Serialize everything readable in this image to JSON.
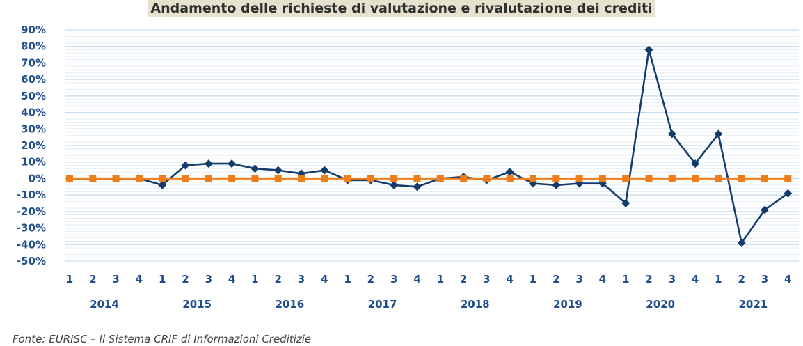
{
  "chart_data": {
    "type": "line",
    "title": "Andamento delle richieste di valutazione e rivalutazione dei crediti",
    "source": "Fonte: EURISC – Il Sistema CRIF di Informazioni Creditizie",
    "ylim": [
      -50,
      90
    ],
    "y_ticks": [
      90,
      80,
      70,
      60,
      50,
      40,
      30,
      20,
      10,
      0,
      -10,
      -20,
      -30,
      -40,
      -50
    ],
    "y_tick_suffix": "%",
    "quarters": [
      "1",
      "2",
      "3",
      "4",
      "1",
      "2",
      "3",
      "4",
      "1",
      "2",
      "3",
      "4",
      "1",
      "2",
      "3",
      "4",
      "1",
      "2",
      "3",
      "4",
      "1",
      "2",
      "3",
      "4",
      "1",
      "2",
      "3",
      "4",
      "1",
      "2",
      "3",
      "4"
    ],
    "years": [
      "2014",
      "2015",
      "2016",
      "2017",
      "2018",
      "2019",
      "2020",
      "2021"
    ],
    "grid": true,
    "series": [
      {
        "color": "#133b6b",
        "marker": "diamond",
        "values": [
          0,
          0,
          0,
          0,
          -4,
          8,
          9,
          9,
          6,
          5,
          3,
          5,
          -1,
          -1,
          -4,
          -5,
          0,
          1,
          -1,
          4,
          -3,
          -4,
          -3,
          -3,
          -15,
          78,
          27,
          9,
          27,
          -39,
          -19,
          -9
        ]
      },
      {
        "color": "#ef7d1a",
        "marker": "square",
        "values": [
          0,
          0,
          0,
          0,
          0,
          0,
          0,
          0,
          0,
          0,
          0,
          0,
          0,
          0,
          0,
          0,
          0,
          0,
          0,
          0,
          0,
          0,
          0,
          0,
          0,
          0,
          0,
          0,
          0,
          0,
          0,
          0
        ]
      }
    ]
  }
}
